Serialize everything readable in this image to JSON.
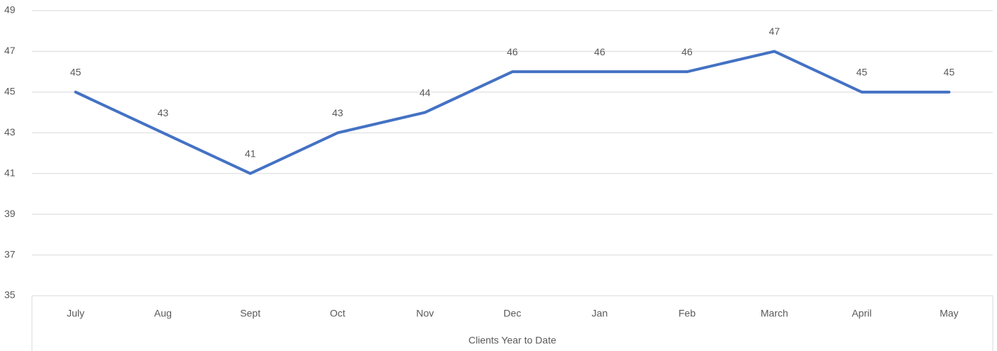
{
  "chart_data": {
    "type": "line",
    "x_label": "Clients Year to Date",
    "categories": [
      "July",
      "Aug",
      "Sept",
      "Oct",
      "Nov",
      "Dec",
      "Jan",
      "Feb",
      "March",
      "April",
      "May"
    ],
    "series": [
      {
        "name": "Clients",
        "color": "#4472c4",
        "values": [
          45,
          43,
          41,
          43,
          44,
          46,
          46,
          46,
          47,
          45,
          45
        ]
      }
    ],
    "ylim": [
      35,
      49
    ],
    "yticks": [
      35,
      37,
      39,
      41,
      43,
      45,
      47,
      49
    ],
    "grid": true,
    "data_labels": true
  }
}
